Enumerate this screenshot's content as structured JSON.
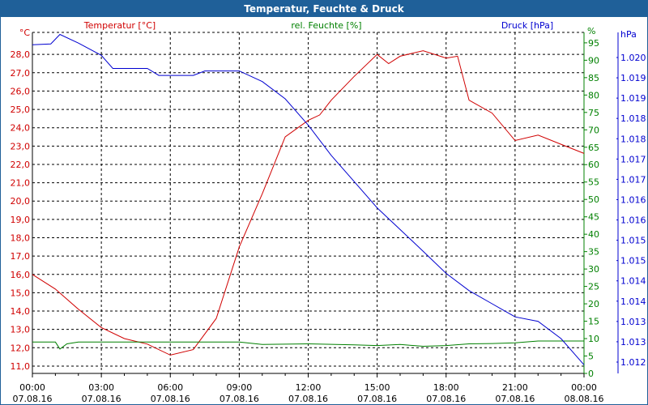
{
  "window": {
    "title": "Temperatur, Feuchte & Druck"
  },
  "colors": {
    "temperature": "#d00000",
    "humidity": "#008000",
    "pressure": "#0000d0",
    "titlebar": "#1f6099"
  },
  "chart_data": {
    "type": "line",
    "title": "Temperatur, Feuchte & Druck",
    "legend": {
      "temperature": "Temperatur [°C]",
      "humidity": "rel. Feuchte [%]",
      "pressure": "Druck [hPa]"
    },
    "axes": {
      "temperature": {
        "unit": "°C",
        "ylim": [
          10.6,
          29.2
        ],
        "ticks": [
          "28,0",
          "27,0",
          "26,0",
          "25,0",
          "24,0",
          "23,0",
          "22,0",
          "21,0",
          "20,0",
          "19,0",
          "18,0",
          "17,0",
          "16,0",
          "15,0",
          "14,0",
          "13,0",
          "12,0",
          "11,0"
        ]
      },
      "humidity": {
        "unit": "%",
        "ylim": [
          0,
          98
        ],
        "ticks": [
          "95",
          "90",
          "85",
          "80",
          "75",
          "70",
          "65",
          "60",
          "55",
          "50",
          "45",
          "40",
          "35",
          "30",
          "25",
          "20",
          "15",
          "10",
          "5",
          "0"
        ]
      },
      "pressure": {
        "unit": "hPa",
        "ylim": [
          1.01196,
          1.02028
        ],
        "ticks": [
          "1.020",
          "1.019",
          "1.019",
          "1.018",
          "1.018",
          "1.017",
          "1.017",
          "1.016",
          "1.016",
          "1.015",
          "1.015",
          "1.014",
          "1.014",
          "1.013",
          "1.013",
          "1.012"
        ]
      }
    },
    "x_ticks": [
      {
        "time": "00:00",
        "date": "07.08.16"
      },
      {
        "time": "03:00",
        "date": "07.08.16"
      },
      {
        "time": "06:00",
        "date": "07.08.16"
      },
      {
        "time": "09:00",
        "date": "07.08.16"
      },
      {
        "time": "12:00",
        "date": "07.08.16"
      },
      {
        "time": "15:00",
        "date": "07.08.16"
      },
      {
        "time": "18:00",
        "date": "07.08.16"
      },
      {
        "time": "21:00",
        "date": "07.08.16"
      },
      {
        "time": "00:00",
        "date": "08.08.16"
      }
    ],
    "xlim_hours": [
      0,
      24
    ],
    "series": [
      {
        "name": "Temperatur",
        "axis": "temperature",
        "x": [
          0,
          1,
          2,
          3,
          4,
          5,
          6,
          7,
          8,
          9,
          10,
          11,
          12,
          12.5,
          13,
          14,
          15,
          15.5,
          16,
          17,
          18,
          18.5,
          19,
          20,
          21,
          22,
          23,
          24
        ],
        "y": [
          16.0,
          15.2,
          14.1,
          13.1,
          12.5,
          12.2,
          11.6,
          11.9,
          13.6,
          17.5,
          20.4,
          23.5,
          24.4,
          24.7,
          25.5,
          26.8,
          28.0,
          27.5,
          27.9,
          28.2,
          27.8,
          27.9,
          25.5,
          24.8,
          23.3,
          23.6,
          23.1,
          22.6
        ]
      },
      {
        "name": "rel. Feuchte",
        "axis": "humidity",
        "x": [
          0,
          1,
          1.2,
          1.5,
          2,
          3,
          6,
          9,
          10,
          12,
          14,
          15,
          16,
          17,
          18,
          19,
          20,
          21,
          22,
          23,
          24
        ],
        "y": [
          9,
          9,
          7,
          8.5,
          9,
          9,
          9,
          9,
          8.3,
          8.5,
          8.2,
          8,
          8.3,
          7.8,
          8,
          8.5,
          8.6,
          8.8,
          9.3,
          9.3,
          9.3
        ]
      },
      {
        "name": "Druck",
        "axis": "pressure",
        "x": [
          0,
          0.8,
          1.2,
          2,
          3,
          3.5,
          5,
          5.5,
          7,
          7.5,
          9,
          10,
          11,
          12,
          13,
          14,
          15,
          16,
          17,
          18,
          19,
          20,
          21,
          22,
          23,
          23.5,
          24
        ],
        "y": [
          1.01998,
          1.02,
          1.02023,
          1.02002,
          1.01972,
          1.0194,
          1.0194,
          1.01923,
          1.01923,
          1.01934,
          1.01934,
          1.01908,
          1.01866,
          1.01802,
          1.01728,
          1.01664,
          1.016,
          1.01547,
          1.01494,
          1.0144,
          1.01398,
          1.01366,
          1.01334,
          1.01323,
          1.01281,
          1.01249,
          1.01217
        ]
      }
    ]
  }
}
